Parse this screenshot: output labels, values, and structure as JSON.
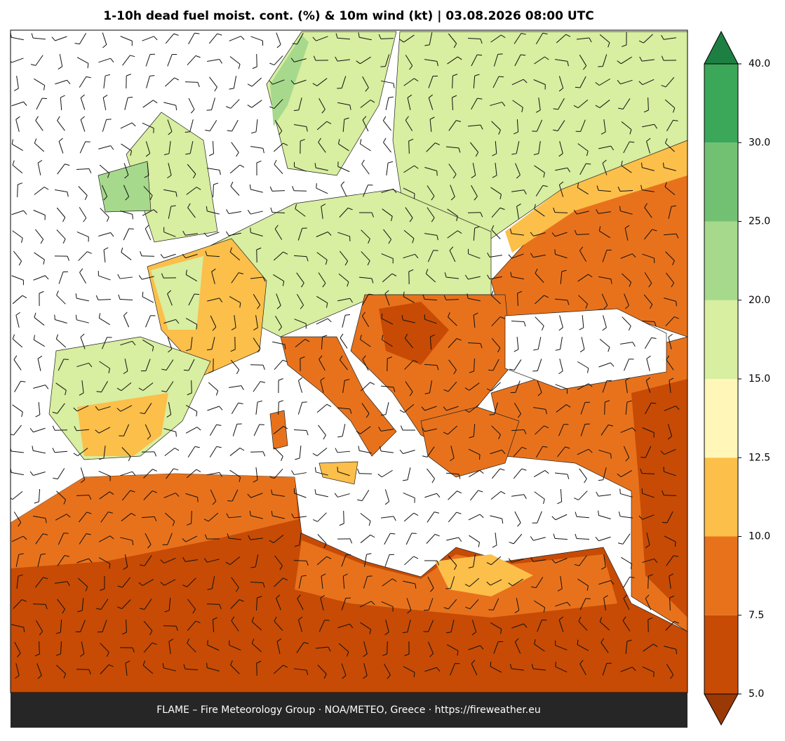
{
  "title": "1-10h dead fuel moist. cont. (%) & 10m wind (kt)  |  03.08.2026 08:00 UTC",
  "footer": "FLAME – Fire Meteorology Group · NOA/METEO, Greece · https://fireweather.eu",
  "colorbar": {
    "ticks": [
      {
        "value": 5,
        "label": "5.0"
      },
      {
        "value": 7.5,
        "label": "7.5"
      },
      {
        "value": 10,
        "label": "10.0"
      },
      {
        "value": 12.5,
        "label": "12.5"
      },
      {
        "value": 15,
        "label": "15.0"
      },
      {
        "value": 20,
        "label": "20.0"
      },
      {
        "value": 25,
        "label": "25.0"
      },
      {
        "value": 30,
        "label": "30.0"
      },
      {
        "value": 40,
        "label": "40.0"
      }
    ],
    "colors": [
      "#c74b04",
      "#e8721c",
      "#fbbf4a",
      "#fff6b8",
      "#d8eea0",
      "#a6d98c",
      "#72c172",
      "#3aa858"
    ],
    "under_color": "#9a3806",
    "over_color": "#1e7f43"
  }
}
